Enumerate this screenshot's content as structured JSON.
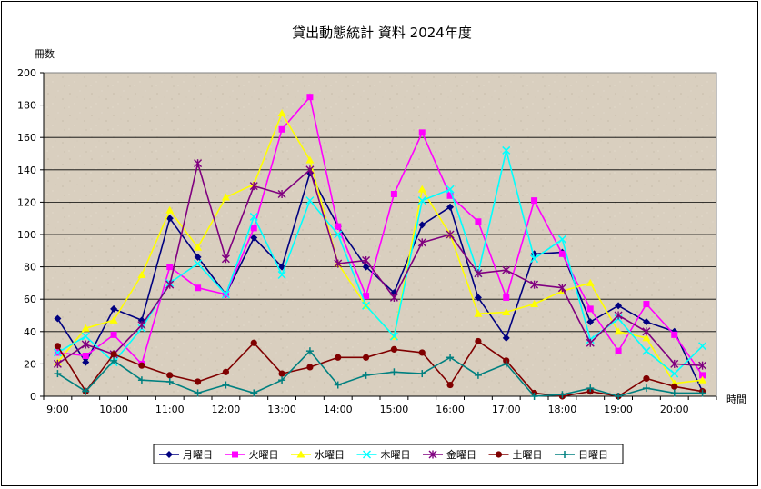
{
  "chart_data": {
    "type": "line",
    "title": "貸出動態統計 資料 2024年度",
    "ylabel": "冊数",
    "xlabel": "時間",
    "ylim": [
      0,
      200
    ],
    "y_ticks": [
      0,
      20,
      40,
      60,
      80,
      100,
      120,
      140,
      160,
      180,
      200
    ],
    "x_tick_labels": [
      "9:00",
      "10:00",
      "11:00",
      "12:00",
      "13:00",
      "14:00",
      "15:00",
      "16:00",
      "17:00",
      "18:00",
      "19:00",
      "20:00"
    ],
    "categories": [
      "9:00",
      "9:30",
      "10:00",
      "10:30",
      "11:00",
      "11:30",
      "12:00",
      "12:30",
      "13:00",
      "13:30",
      "14:00",
      "14:30",
      "15:00",
      "15:30",
      "16:00",
      "16:30",
      "17:00",
      "17:30",
      "18:00",
      "18:30",
      "19:00",
      "19:30",
      "20:00",
      "20:30"
    ],
    "grid": true,
    "legend_position": "bottom",
    "series": [
      {
        "name": "月曜日",
        "color": "#000080",
        "marker": "diamond",
        "values": [
          48,
          21,
          54,
          47,
          110,
          86,
          63,
          98,
          80,
          138,
          105,
          80,
          64,
          106,
          117,
          61,
          36,
          88,
          89,
          46,
          56,
          46,
          40,
          3
        ]
      },
      {
        "name": "火曜日",
        "color": "#ff00ff",
        "marker": "square",
        "values": [
          27,
          25,
          38,
          20,
          80,
          67,
          63,
          104,
          165,
          185,
          105,
          62,
          125,
          163,
          124,
          108,
          61,
          121,
          88,
          54,
          28,
          57,
          38,
          13
        ]
      },
      {
        "name": "水曜日",
        "color": "#ffff00",
        "marker": "triangle",
        "values": [
          21,
          42,
          47,
          75,
          115,
          92,
          123,
          131,
          175,
          146,
          82,
          56,
          37,
          128,
          100,
          51,
          52,
          57,
          65,
          70,
          40,
          36,
          8,
          10
        ]
      },
      {
        "name": "木曜日",
        "color": "#00ffff",
        "marker": "x",
        "values": [
          27,
          37,
          21,
          42,
          70,
          82,
          63,
          111,
          75,
          121,
          100,
          56,
          37,
          121,
          128,
          76,
          152,
          85,
          97,
          35,
          48,
          28,
          14,
          31
        ]
      },
      {
        "name": "金曜日",
        "color": "#800080",
        "marker": "star",
        "values": [
          20,
          32,
          26,
          44,
          69,
          144,
          85,
          130,
          125,
          140,
          82,
          84,
          61,
          95,
          100,
          76,
          78,
          69,
          67,
          33,
          50,
          40,
          20,
          19
        ]
      },
      {
        "name": "土曜日",
        "color": "#800000",
        "marker": "circle",
        "values": [
          31,
          3,
          26,
          19,
          13,
          9,
          15,
          33,
          14,
          18,
          24,
          24,
          29,
          27,
          7,
          34,
          22,
          2,
          0,
          3,
          0,
          11,
          6,
          3
        ]
      },
      {
        "name": "日曜日",
        "color": "#008080",
        "marker": "plus",
        "values": [
          14,
          3,
          22,
          10,
          9,
          2,
          7,
          2,
          10,
          28,
          7,
          13,
          15,
          14,
          24,
          13,
          20,
          0,
          1,
          5,
          0,
          5,
          2,
          2
        ]
      }
    ]
  }
}
